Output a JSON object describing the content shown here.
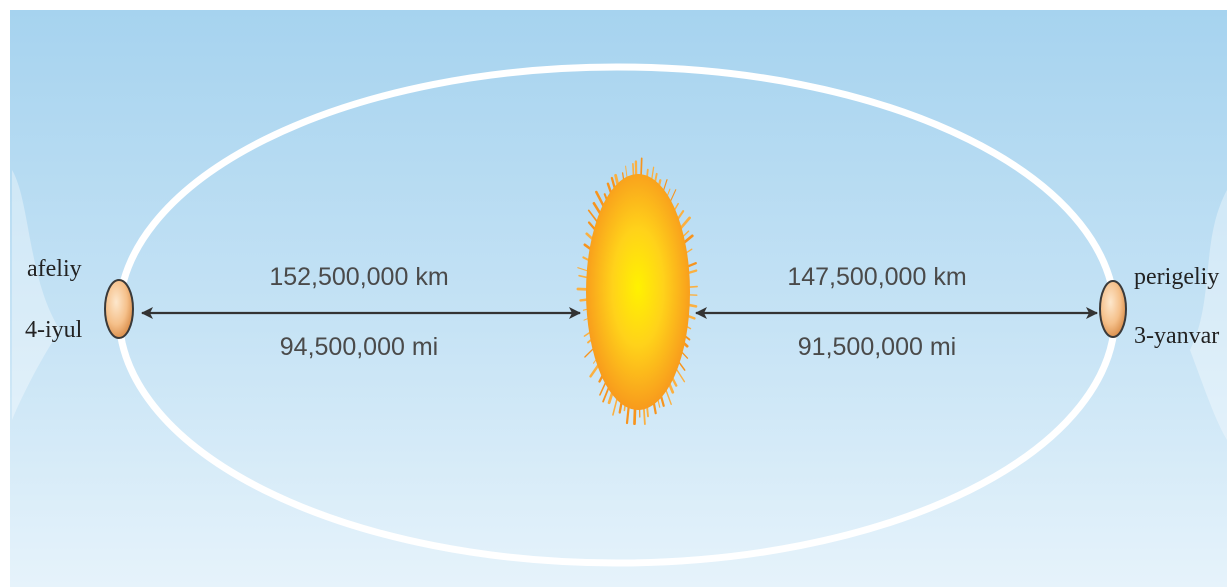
{
  "diagram": {
    "aphelion": {
      "name": "afeliy",
      "date": "4-iyul"
    },
    "perihelion": {
      "name": "perigeliy",
      "date": "3-yanvar"
    },
    "aphelion_distance": {
      "km": "152,500,000 km",
      "mi": "94,500,000 mi"
    },
    "perihelion_distance": {
      "km": "147,500,000 km",
      "mi": "91,500,000 mi"
    }
  },
  "colors": {
    "sky_top": "#a6d3ef",
    "sky_bottom": "#e6f3fb",
    "orbit": "#ffffff",
    "arrow": "#333333",
    "sun_core": "#fff200",
    "sun_edge": "#f7941d",
    "planet_fill": "#f5c08a",
    "planet_stroke": "#3a3a3a"
  }
}
